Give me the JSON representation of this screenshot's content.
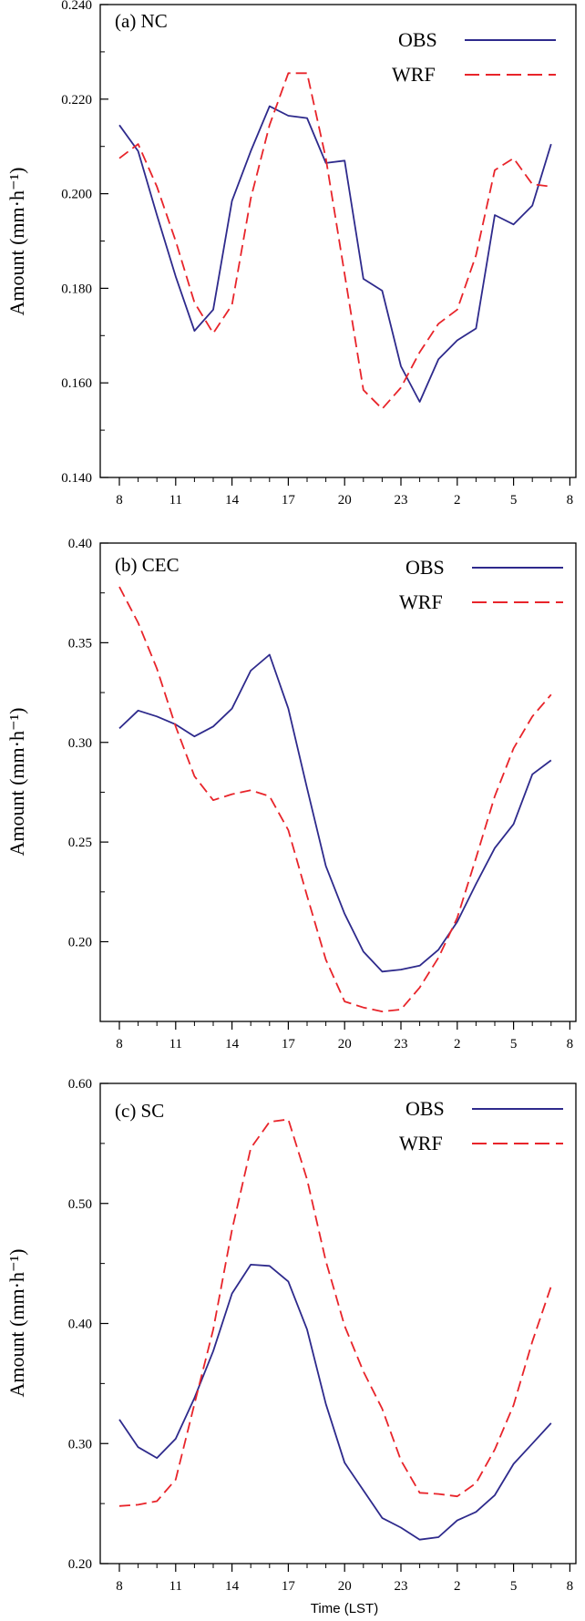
{
  "colors": {
    "obs": "#2e2a8c",
    "wrf": "#e8242a",
    "axis": "#000000"
  },
  "chart_data": [
    {
      "type": "line",
      "title": "(a) NC",
      "ylabel": "Amount (mm·h⁻¹)",
      "xlabel": "",
      "x_tick_labels": [
        "8",
        "11",
        "14",
        "17",
        "20",
        "23",
        "2",
        "5",
        "8"
      ],
      "y_ticks": [
        0.14,
        0.16,
        0.18,
        0.2,
        0.22,
        0.24
      ],
      "y_tick_labels": [
        "0.140",
        "0.160",
        "0.180",
        "0.200",
        "0.220",
        "0.240"
      ],
      "ylim": [
        0.14,
        0.24
      ],
      "x": [
        8,
        9,
        10,
        11,
        12,
        13,
        14,
        15,
        16,
        17,
        18,
        19,
        20,
        21,
        22,
        23,
        24,
        25,
        26,
        27,
        28,
        29,
        30,
        31
      ],
      "xlim": [
        7.5,
        32
      ],
      "grid": false,
      "legend_position": "top-right",
      "series": [
        {
          "name": "OBS",
          "style": "solid",
          "values": [
            0.2145,
            0.209,
            0.1955,
            0.1825,
            0.171,
            0.1755,
            0.1985,
            0.209,
            0.2185,
            0.2165,
            0.216,
            0.2065,
            0.207,
            0.182,
            0.1795,
            0.1635,
            0.156,
            0.165,
            0.169,
            0.1715,
            0.1955,
            0.1935,
            0.1975,
            0.2105
          ]
        },
        {
          "name": "WRF",
          "style": "dashed",
          "values": [
            0.2075,
            0.2105,
            0.2015,
            0.19,
            0.177,
            0.1705,
            0.1765,
            0.199,
            0.2145,
            0.2255,
            0.2255,
            0.2075,
            0.183,
            0.1585,
            0.1545,
            0.159,
            0.1665,
            0.1725,
            0.1755,
            0.187,
            0.205,
            0.2075,
            0.202,
            0.2015
          ]
        }
      ]
    },
    {
      "type": "line",
      "title": "(b) CEC",
      "ylabel": "Amount (mm·h⁻¹)",
      "xlabel": "",
      "x_tick_labels": [
        "8",
        "11",
        "14",
        "17",
        "20",
        "23",
        "2",
        "5",
        "8"
      ],
      "y_ticks": [
        0.2,
        0.25,
        0.3,
        0.35,
        0.4
      ],
      "y_tick_labels": [
        "0.20",
        "0.25",
        "0.30",
        "0.35",
        "0.40"
      ],
      "ylim": [
        0.16,
        0.4
      ],
      "x": [
        8,
        9,
        10,
        11,
        12,
        13,
        14,
        15,
        16,
        17,
        18,
        19,
        20,
        21,
        22,
        23,
        24,
        25,
        26,
        27,
        28,
        29,
        30,
        31
      ],
      "xlim": [
        7.5,
        32
      ],
      "grid": false,
      "legend_position": "top-right",
      "series": [
        {
          "name": "OBS",
          "style": "solid",
          "values": [
            0.307,
            0.316,
            0.313,
            0.309,
            0.303,
            0.308,
            0.317,
            0.336,
            0.344,
            0.317,
            0.277,
            0.238,
            0.214,
            0.195,
            0.185,
            0.186,
            0.188,
            0.196,
            0.21,
            0.229,
            0.247,
            0.259,
            0.284,
            0.291
          ]
        },
        {
          "name": "WRF",
          "style": "dashed",
          "values": [
            0.378,
            0.36,
            0.337,
            0.308,
            0.283,
            0.271,
            0.274,
            0.276,
            0.273,
            0.256,
            0.223,
            0.191,
            0.17,
            0.167,
            0.165,
            0.166,
            0.177,
            0.192,
            0.212,
            0.242,
            0.273,
            0.297,
            0.313,
            0.324
          ]
        }
      ]
    },
    {
      "type": "line",
      "title": "(c) SC",
      "ylabel": "Amount (mm·h⁻¹)",
      "xlabel": "Time (LST)",
      "x_tick_labels": [
        "8",
        "11",
        "14",
        "17",
        "20",
        "23",
        "2",
        "5",
        "8"
      ],
      "y_ticks": [
        0.2,
        0.3,
        0.4,
        0.5,
        0.6
      ],
      "y_tick_labels": [
        "0.20",
        "0.30",
        "0.40",
        "0.50",
        "0.60"
      ],
      "ylim": [
        0.2,
        0.6
      ],
      "x": [
        8,
        9,
        10,
        11,
        12,
        13,
        14,
        15,
        16,
        17,
        18,
        19,
        20,
        21,
        22,
        23,
        24,
        25,
        26,
        27,
        28,
        29,
        30,
        31
      ],
      "xlim": [
        7.5,
        32
      ],
      "grid": false,
      "legend_position": "top-right",
      "series": [
        {
          "name": "OBS",
          "style": "solid",
          "values": [
            0.32,
            0.297,
            0.288,
            0.304,
            0.338,
            0.377,
            0.425,
            0.449,
            0.448,
            0.435,
            0.395,
            0.333,
            0.284,
            0.261,
            0.238,
            0.23,
            0.22,
            0.222,
            0.236,
            0.243,
            0.257,
            0.283,
            0.3,
            0.317
          ]
        },
        {
          "name": "WRF",
          "style": "dashed",
          "values": [
            0.248,
            0.249,
            0.252,
            0.27,
            0.333,
            0.395,
            0.478,
            0.546,
            0.568,
            0.57,
            0.52,
            0.452,
            0.398,
            0.36,
            0.329,
            0.286,
            0.259,
            0.258,
            0.256,
            0.267,
            0.295,
            0.332,
            0.385,
            0.431
          ]
        }
      ]
    }
  ]
}
